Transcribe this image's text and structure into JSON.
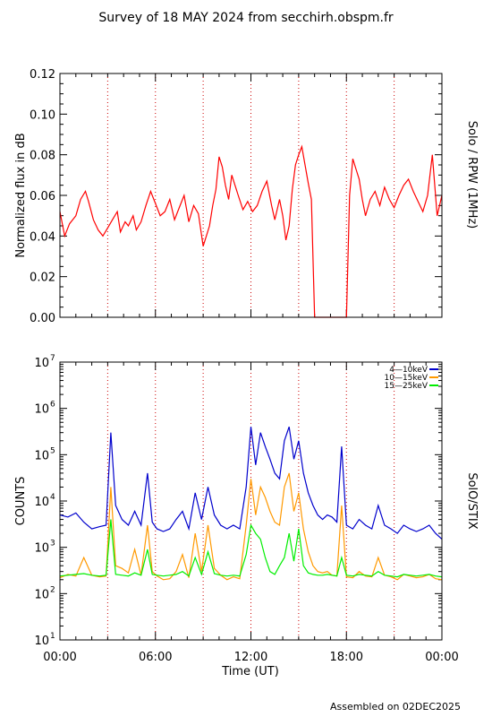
{
  "page": {
    "title": "Survey of 18 MAY 2024 from secchirh.obspm.fr",
    "footer": "Assembled on 02DEC2025"
  },
  "chart_data": [
    {
      "type": "line",
      "right_label": "Solo / RPW (1MHz)",
      "ylabel": "Normalized flux in dB",
      "xlabel": "",
      "xlim_hours": [
        0,
        24
      ],
      "ylim": [
        0.0,
        0.12
      ],
      "yscale": "linear",
      "y_ticks": [
        "0.00",
        "0.02",
        "0.04",
        "0.06",
        "0.08",
        "0.10",
        "0.12"
      ],
      "x_tick_labels": [],
      "vertical_guides_hours": [
        3,
        6,
        9,
        12,
        15,
        18,
        21
      ],
      "guide_color": "#cc0000",
      "series": [
        {
          "color": "#ff0000",
          "x_hours": [
            0,
            0.3,
            0.6,
            1.0,
            1.3,
            1.6,
            1.8,
            2.1,
            2.4,
            2.7,
            3.0,
            3.3,
            3.6,
            3.8,
            4.1,
            4.3,
            4.6,
            4.8,
            5.1,
            5.4,
            5.7,
            6.0,
            6.3,
            6.6,
            6.9,
            7.2,
            7.5,
            7.8,
            8.1,
            8.4,
            8.7,
            9.0,
            9.2,
            9.4,
            9.6,
            9.8,
            10.0,
            10.2,
            10.4,
            10.6,
            10.8,
            11.0,
            11.2,
            11.5,
            11.8,
            12.1,
            12.4,
            12.7,
            13.0,
            13.3,
            13.5,
            13.8,
            14.0,
            14.2,
            14.4,
            14.6,
            14.8,
            15.0,
            15.2,
            15.4,
            15.6,
            15.8,
            16.0,
            16.2,
            16.4,
            16.6,
            16.8,
            17.0,
            17.2,
            17.4,
            17.6,
            17.8,
            18.0,
            18.2,
            18.4,
            18.6,
            18.8,
            19.0,
            19.2,
            19.5,
            19.8,
            20.1,
            20.4,
            20.7,
            21.0,
            21.3,
            21.6,
            21.9,
            22.2,
            22.5,
            22.8,
            23.1,
            23.4,
            23.7,
            24.0
          ],
          "values": [
            0.052,
            0.04,
            0.046,
            0.05,
            0.058,
            0.062,
            0.057,
            0.048,
            0.043,
            0.04,
            0.044,
            0.048,
            0.052,
            0.042,
            0.047,
            0.045,
            0.05,
            0.043,
            0.047,
            0.055,
            0.062,
            0.056,
            0.05,
            0.052,
            0.058,
            0.048,
            0.054,
            0.06,
            0.047,
            0.055,
            0.051,
            0.035,
            0.04,
            0.045,
            0.055,
            0.063,
            0.079,
            0.074,
            0.065,
            0.058,
            0.07,
            0.065,
            0.06,
            0.053,
            0.057,
            0.052,
            0.055,
            0.062,
            0.067,
            0.055,
            0.048,
            0.058,
            0.05,
            0.038,
            0.045,
            0.063,
            0.075,
            0.08,
            0.084,
            0.075,
            0.066,
            0.058,
            0.0,
            0.0,
            0.0,
            0.0,
            0.0,
            0.0,
            0.0,
            0.0,
            0.0,
            0.0,
            0.0,
            0.06,
            0.078,
            0.073,
            0.068,
            0.058,
            0.05,
            0.058,
            0.062,
            0.055,
            0.064,
            0.058,
            0.054,
            0.06,
            0.065,
            0.068,
            0.062,
            0.057,
            0.052,
            0.06,
            0.08,
            0.05,
            0.06
          ]
        }
      ]
    },
    {
      "type": "line",
      "right_label": "SolO/STIX",
      "ylabel": "COUNTS",
      "xlabel": "Time (UT)",
      "xlim_hours": [
        0,
        24
      ],
      "ylim": [
        10,
        10000000
      ],
      "yscale": "log",
      "y_tick_exponents": [
        "1",
        "2",
        "3",
        "4",
        "5",
        "6",
        "7"
      ],
      "y_tick_base": "10",
      "x_tick_labels": [
        "00:00",
        "06:00",
        "12:00",
        "18:00",
        "00:00"
      ],
      "vertical_guides_hours": [
        3,
        6,
        9,
        12,
        15,
        18,
        21
      ],
      "guide_color": "#cc0000",
      "legend": "top-right",
      "series": [
        {
          "name": "4—10keV",
          "color": "#0000cc",
          "x_hours": [
            0,
            0.5,
            1.0,
            1.5,
            2.0,
            2.5,
            2.9,
            3.2,
            3.5,
            3.9,
            4.3,
            4.7,
            5.1,
            5.5,
            5.8,
            6.1,
            6.5,
            6.9,
            7.3,
            7.7,
            8.1,
            8.5,
            8.9,
            9.3,
            9.7,
            10.1,
            10.5,
            10.9,
            11.3,
            11.7,
            12.0,
            12.3,
            12.6,
            12.9,
            13.2,
            13.5,
            13.8,
            14.1,
            14.4,
            14.7,
            15.0,
            15.3,
            15.6,
            15.9,
            16.2,
            16.5,
            16.8,
            17.1,
            17.4,
            17.7,
            18.0,
            18.4,
            18.8,
            19.2,
            19.6,
            20.0,
            20.4,
            20.8,
            21.2,
            21.6,
            22.0,
            22.4,
            22.8,
            23.2,
            23.6,
            24.0
          ],
          "values": [
            5000,
            4500,
            5500,
            3500,
            2500,
            2800,
            3000,
            300000,
            8000,
            4000,
            3000,
            6000,
            3000,
            40000,
            3500,
            2500,
            2200,
            2500,
            4000,
            6000,
            2500,
            15000,
            4000,
            20000,
            5000,
            3000,
            2500,
            3000,
            2500,
            20000,
            400000,
            60000,
            300000,
            150000,
            80000,
            40000,
            30000,
            200000,
            400000,
            80000,
            200000,
            40000,
            15000,
            8000,
            5000,
            4000,
            5000,
            4500,
            3500,
            150000,
            3000,
            2500,
            4000,
            3000,
            2500,
            8000,
            3000,
            2500,
            2000,
            3000,
            2500,
            2200,
            2500,
            3000,
            2000,
            1500
          ]
        },
        {
          "name": "10—15keV",
          "color": "#ff9900",
          "x_hours": [
            0,
            0.5,
            1.0,
            1.5,
            2.0,
            2.5,
            2.9,
            3.2,
            3.5,
            3.9,
            4.3,
            4.7,
            5.1,
            5.5,
            5.8,
            6.1,
            6.5,
            6.9,
            7.3,
            7.7,
            8.1,
            8.5,
            8.9,
            9.3,
            9.7,
            10.1,
            10.5,
            10.9,
            11.3,
            11.7,
            12.0,
            12.3,
            12.6,
            12.9,
            13.2,
            13.5,
            13.8,
            14.1,
            14.4,
            14.7,
            15.0,
            15.3,
            15.6,
            15.9,
            16.2,
            16.5,
            16.8,
            17.1,
            17.4,
            17.7,
            18.0,
            18.4,
            18.8,
            19.2,
            19.6,
            20.0,
            20.4,
            20.8,
            21.2,
            21.6,
            22.0,
            22.4,
            22.8,
            23.2,
            23.6,
            24.0
          ],
          "values": [
            220,
            260,
            240,
            600,
            250,
            230,
            240,
            20000,
            400,
            350,
            280,
            900,
            250,
            3000,
            300,
            240,
            200,
            210,
            300,
            700,
            220,
            2000,
            300,
            3000,
            350,
            250,
            200,
            230,
            210,
            3000,
            30000,
            5000,
            20000,
            12000,
            6000,
            3500,
            3000,
            20000,
            40000,
            6000,
            15000,
            2500,
            800,
            400,
            300,
            280,
            300,
            250,
            240,
            8000,
            230,
            220,
            300,
            240,
            230,
            600,
            250,
            230,
            200,
            260,
            240,
            220,
            230,
            260,
            210,
            200
          ]
        },
        {
          "name": "15—25keV",
          "color": "#00ee00",
          "x_hours": [
            0,
            0.5,
            1.0,
            1.5,
            2.0,
            2.5,
            2.9,
            3.2,
            3.5,
            3.9,
            4.3,
            4.7,
            5.1,
            5.5,
            5.8,
            6.1,
            6.5,
            6.9,
            7.3,
            7.7,
            8.1,
            8.5,
            8.9,
            9.3,
            9.7,
            10.1,
            10.5,
            10.9,
            11.3,
            11.7,
            12.0,
            12.3,
            12.6,
            12.9,
            13.2,
            13.5,
            13.8,
            14.1,
            14.4,
            14.7,
            15.0,
            15.3,
            15.6,
            15.9,
            16.2,
            16.5,
            16.8,
            17.1,
            17.4,
            17.7,
            18.0,
            18.4,
            18.8,
            19.2,
            19.6,
            20.0,
            20.4,
            20.8,
            21.2,
            21.6,
            22.0,
            22.4,
            22.8,
            23.2,
            23.6,
            24.0
          ],
          "values": [
            240,
            250,
            260,
            270,
            250,
            240,
            250,
            4000,
            260,
            250,
            240,
            280,
            250,
            900,
            260,
            250,
            240,
            250,
            260,
            300,
            240,
            600,
            260,
            800,
            270,
            250,
            240,
            250,
            240,
            700,
            3000,
            2000,
            1500,
            600,
            300,
            260,
            400,
            600,
            2000,
            500,
            2500,
            400,
            280,
            260,
            250,
            250,
            260,
            250,
            240,
            600,
            250,
            240,
            260,
            250,
            240,
            300,
            250,
            240,
            230,
            260,
            250,
            240,
            250,
            260,
            240,
            230
          ]
        }
      ]
    }
  ]
}
